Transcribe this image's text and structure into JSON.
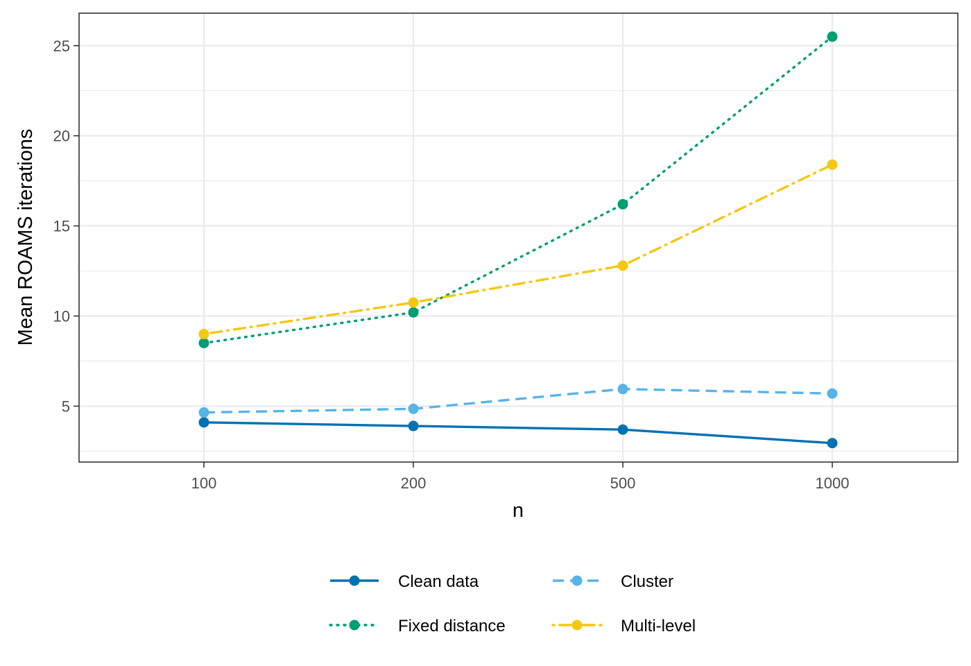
{
  "chart_data": {
    "type": "line",
    "title": "",
    "xlabel": "n",
    "ylabel": "Mean ROAMS iterations",
    "x_scale": "categorical",
    "categories": [
      "100",
      "200",
      "500",
      "1000"
    ],
    "ylim": [
      1.9,
      26.8
    ],
    "y_ticks": [
      5,
      10,
      15,
      20,
      25
    ],
    "y_tick_labels": [
      "5",
      "10",
      "15",
      "20",
      "25"
    ],
    "grid": true,
    "legend_position": "bottom",
    "series": [
      {
        "name": "Clean data",
        "color": "#0072b2",
        "line_style": "solid",
        "values": [
          4.1,
          3.9,
          3.7,
          2.95
        ]
      },
      {
        "name": "Cluster",
        "color": "#56b4e9",
        "line_style": "dashed",
        "values": [
          4.65,
          4.85,
          5.95,
          5.7
        ]
      },
      {
        "name": "Fixed distance",
        "color": "#009e73",
        "line_style": "dotted",
        "values": [
          8.5,
          10.2,
          16.2,
          25.5
        ]
      },
      {
        "name": "Multi-level",
        "color": "#f5c710",
        "line_style": "dotdash",
        "values": [
          9.0,
          10.75,
          12.8,
          18.4
        ]
      }
    ]
  }
}
